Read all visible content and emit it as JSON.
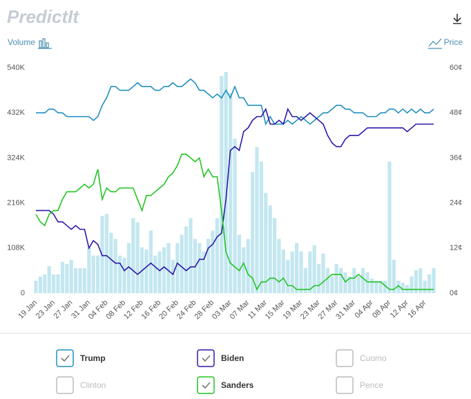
{
  "header": {
    "logo": "PredictIt"
  },
  "chart_data": {
    "type": "bar-line",
    "y_label": "Volume",
    "y2_label": "Price",
    "categories": [
      "19 Jan",
      null,
      null,
      null,
      "23 Jan",
      null,
      null,
      null,
      "27 Jan",
      null,
      null,
      null,
      "31 Jan",
      null,
      null,
      null,
      "04 Feb",
      null,
      null,
      null,
      "08 Feb",
      null,
      null,
      null,
      "12 Feb",
      null,
      null,
      null,
      "16 Feb",
      null,
      null,
      null,
      "20 Feb",
      null,
      null,
      null,
      "24 Feb",
      null,
      null,
      null,
      "28 Feb",
      null,
      null,
      null,
      "03 Mar",
      null,
      null,
      null,
      "07 Mar",
      null,
      null,
      null,
      "11 Mar",
      null,
      null,
      null,
      "15 Mar",
      null,
      null,
      null,
      "19 Mar",
      null,
      null,
      null,
      "23 Mar",
      null,
      null,
      null,
      "27 Mar",
      null,
      null,
      null,
      "31 Mar",
      null,
      null,
      null,
      "04 Apr",
      null,
      null,
      null,
      "08 Apr",
      null,
      null,
      null,
      "12 Apr",
      null,
      null,
      null,
      "16 Apr",
      null,
      null
    ],
    "bars": {
      "color": "#c3e7f0",
      "values": [
        30000,
        40000,
        45000,
        65000,
        45000,
        45000,
        75000,
        70000,
        80000,
        60000,
        60000,
        60000,
        110000,
        90000,
        90000,
        185000,
        190000,
        145000,
        130000,
        90000,
        85000,
        120000,
        180000,
        170000,
        110000,
        105000,
        150000,
        90000,
        100000,
        110000,
        120000,
        80000,
        120000,
        140000,
        160000,
        180000,
        130000,
        120000,
        100000,
        130000,
        150000,
        180000,
        520000,
        530000,
        480000,
        370000,
        140000,
        110000,
        130000,
        290000,
        350000,
        315000,
        240000,
        210000,
        180000,
        130000,
        105000,
        80000,
        100000,
        120000,
        100000,
        60000,
        100000,
        115000,
        70000,
        95000,
        60000,
        40000,
        70000,
        60000,
        50000,
        40000,
        60000,
        40000,
        60000,
        50000,
        35000,
        30000,
        30000,
        30000,
        315000,
        80000,
        30000,
        25000,
        20000,
        40000,
        55000,
        60000,
        30000,
        45000,
        60000
      ]
    },
    "series": [
      {
        "name": "Trump",
        "color": "#1f8fc0",
        "axis": "y2",
        "values": [
          48,
          48,
          48,
          49,
          49,
          48,
          48,
          47,
          47,
          47,
          47,
          47,
          47,
          46,
          47,
          50,
          52,
          55,
          55,
          54,
          54,
          54,
          55,
          56,
          55,
          55,
          55,
          54,
          54,
          55,
          55,
          56,
          55,
          55,
          56,
          57,
          56,
          54,
          54,
          53,
          52,
          53,
          52,
          54,
          52,
          55,
          52,
          52,
          50,
          50,
          50,
          50,
          45,
          47,
          45,
          45,
          45,
          46,
          45,
          46,
          47,
          46,
          45,
          46,
          47,
          48,
          48,
          49,
          50,
          50,
          49,
          49,
          48,
          48,
          48,
          47,
          47,
          47,
          48,
          48,
          49,
          49,
          48,
          49,
          48,
          49,
          48,
          49,
          48,
          48,
          49
        ]
      },
      {
        "name": "Biden",
        "color": "#2b18a8",
        "axis": "y2",
        "values": [
          22,
          22,
          22,
          22,
          21,
          19,
          19,
          18,
          17,
          18,
          17,
          17,
          12,
          14,
          13,
          10,
          10,
          9,
          8,
          8,
          6,
          7,
          6,
          5,
          6,
          7,
          8,
          7,
          6,
          7,
          6,
          5,
          8,
          7,
          6,
          7,
          7,
          9,
          9,
          12,
          13,
          15,
          16,
          25,
          38,
          39,
          38,
          43,
          44,
          46,
          47,
          47,
          49,
          45,
          45,
          46,
          45,
          49,
          47,
          47,
          46,
          47,
          48,
          47,
          46,
          45,
          42,
          40,
          39,
          39,
          41,
          42,
          42,
          42,
          43,
          44,
          44,
          44,
          44,
          44,
          44,
          44,
          44,
          44,
          43,
          44,
          45,
          45,
          45,
          45,
          45
        ]
      },
      {
        "name": "Sanders",
        "color": "#22c422",
        "axis": "y2",
        "values": [
          21,
          19,
          18,
          21,
          22,
          22,
          25,
          27,
          27,
          27,
          28,
          29,
          28,
          29,
          33,
          25,
          28,
          27,
          27,
          28,
          28,
          28,
          28,
          25,
          22,
          26,
          26,
          27,
          28,
          29,
          31,
          32,
          34,
          37,
          37,
          36,
          35,
          36,
          31,
          33,
          31,
          31,
          22,
          11,
          8,
          7,
          6,
          8,
          5,
          4,
          1,
          3,
          3,
          4,
          4,
          3,
          4,
          2,
          2,
          1,
          1,
          1,
          1,
          2,
          2,
          3,
          4,
          5,
          5,
          5,
          3,
          4,
          4,
          5,
          4,
          3,
          3,
          3,
          3,
          2,
          1,
          1,
          2,
          1,
          1,
          1,
          1,
          1,
          1,
          1,
          1
        ]
      }
    ],
    "inactive_series": [
      "Cuomo",
      "Clinton",
      "Pence"
    ],
    "legend_order": [
      "Trump",
      "Biden",
      "Cuomo",
      "Clinton",
      "Sanders",
      "Pence"
    ],
    "ylim": [
      0,
      540000
    ],
    "yticks": [
      0,
      {
        "value": 108000,
        "label": "108K"
      },
      {
        "value": 216000,
        "label": "216K"
      },
      {
        "value": 324000,
        "label": "324K"
      },
      {
        "value": 432000,
        "label": "432K"
      },
      {
        "value": 540000,
        "label": "540K"
      }
    ],
    "y2lim": [
      0,
      60
    ],
    "y2ticks": [
      {
        "value": 0,
        "label": "0¢"
      },
      {
        "value": 12,
        "label": "12¢"
      },
      {
        "value": 24,
        "label": "24¢"
      },
      {
        "value": 36,
        "label": "36¢"
      },
      {
        "value": 48,
        "label": "48¢"
      },
      {
        "value": 60,
        "label": "60¢"
      }
    ],
    "grid": false
  }
}
